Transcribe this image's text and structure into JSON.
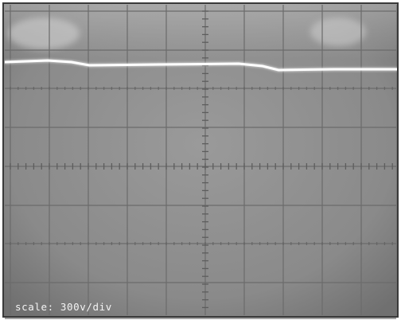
{
  "scale_label": "scale: 300v/div",
  "trace": {
    "color": "#ffffff"
  },
  "colors": {
    "screen_background": "#8a8a8a",
    "graticule": "#6b6b6b",
    "graticule_marks": "#5d5d5d",
    "frame": "#3a3a3a"
  }
}
